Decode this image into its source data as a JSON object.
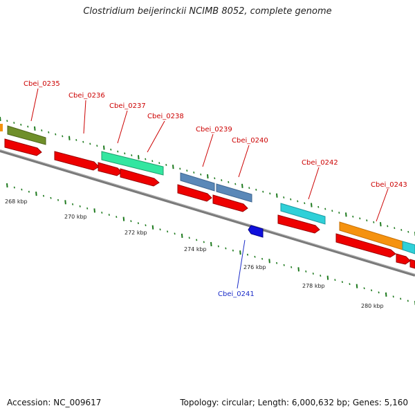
{
  "title": "Clostridium beijerinckii NCIMB 8052, complete genome",
  "footer": {
    "accession": "Accession: NC_009617",
    "summary": "Topology: circular; Length: 6,000,632 bp; Genes: 5,160"
  },
  "colors": {
    "backbone": "#7a7a7a",
    "cds_plus": "#ee0000",
    "cds_minus": "#1010dd",
    "tick": "#1e7a1e",
    "label_plus": "#cc0000",
    "label_minus": "#1a2bc8"
  },
  "genes": [
    {
      "name": "Cbei_0235",
      "strand": "+",
      "feature_color": "#6f8f2a"
    },
    {
      "name": "Cbei_0236",
      "strand": "+"
    },
    {
      "name": "Cbei_0237",
      "strand": "+",
      "feature_color": "#33e6a0"
    },
    {
      "name": "Cbei_0238",
      "strand": "+"
    },
    {
      "name": "Cbei_0239",
      "strand": "+",
      "feature_color": "#5a88b8"
    },
    {
      "name": "Cbei_0240",
      "strand": "+",
      "feature_color": "#5a88b8"
    },
    {
      "name": "Cbei_0241",
      "strand": "-"
    },
    {
      "name": "Cbei_0242",
      "strand": "+",
      "feature_color": "#2fd0d8"
    },
    {
      "name": "Cbei_0243",
      "strand": "+",
      "feature_color": "#f5920f"
    }
  ],
  "scale_labels": [
    "268 kbp",
    "270 kbp",
    "272 kbp",
    "274 kbp",
    "276 kbp",
    "278 kbp",
    "280 kbp"
  ]
}
